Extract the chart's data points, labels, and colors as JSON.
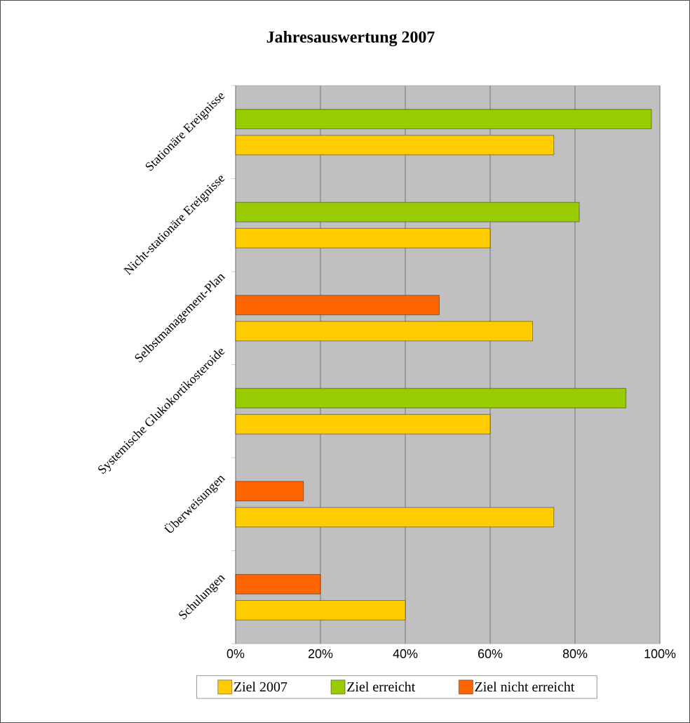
{
  "chart_data": {
    "type": "bar",
    "orientation": "horizontal",
    "title": "Jahresauswertung 2007",
    "categories": [
      "Stationäre Ereignisse",
      "Nicht-stationäre Ereignisse",
      "Selbstmanagement-Plan",
      "Systemische Glukokortikosteroide",
      "Überweisungen",
      "Schulungen"
    ],
    "series": [
      {
        "name": "Ziel 2007",
        "color": "#ffcc00",
        "values": [
          75,
          60,
          70,
          60,
          75,
          40
        ]
      },
      {
        "name": "Ziel erreicht",
        "color": "#99cc00",
        "values": [
          98,
          81,
          null,
          92,
          null,
          null
        ]
      },
      {
        "name": "Ziel nicht erreicht",
        "color": "#ff6600",
        "values": [
          null,
          null,
          48,
          null,
          16,
          20
        ]
      }
    ],
    "xlim": [
      0,
      100
    ],
    "xticks": [
      {
        "value": 0,
        "label": "0%"
      },
      {
        "value": 20,
        "label": "20%"
      },
      {
        "value": 40,
        "label": "40%"
      },
      {
        "value": 60,
        "label": "60%"
      },
      {
        "value": 80,
        "label": "80%"
      },
      {
        "value": 100,
        "label": "100%"
      }
    ],
    "grid": "x",
    "legend": "bottom"
  }
}
